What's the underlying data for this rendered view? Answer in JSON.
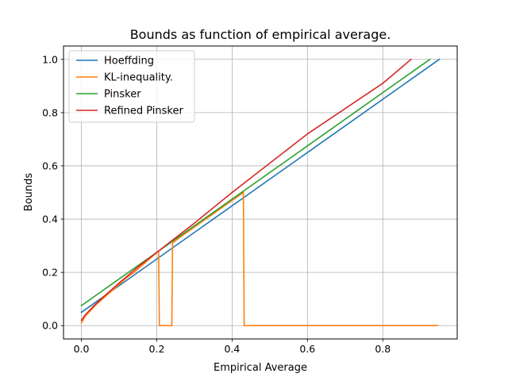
{
  "chart_data": {
    "type": "line",
    "title": "Bounds as function of empirical average.",
    "xlabel": "Empirical Average",
    "ylabel": "Bounds",
    "xlim": [
      -0.0475,
      0.9975
    ],
    "ylim": [
      -0.05,
      1.05
    ],
    "xticks": [
      0.0,
      0.2,
      0.4,
      0.6,
      0.8
    ],
    "yticks": [
      0.0,
      0.2,
      0.4,
      0.6,
      0.8,
      1.0
    ],
    "xtick_labels": [
      "0.0",
      "0.2",
      "0.4",
      "0.6",
      "0.8"
    ],
    "ytick_labels": [
      "0.0",
      "0.2",
      "0.4",
      "0.6",
      "0.8",
      "1.0"
    ],
    "grid": true,
    "legend_position": "upper-left",
    "series": [
      {
        "name": "Hoeffding",
        "color": "#1f77b4",
        "points": [
          [
            0.0,
            0.05
          ],
          [
            0.95,
            1.0
          ]
        ]
      },
      {
        "name": "KL-inequality.",
        "color": "#ff7f0e",
        "points": [
          [
            0.0,
            0.01
          ],
          [
            0.01,
            0.035
          ],
          [
            0.02,
            0.05
          ],
          [
            0.04,
            0.08
          ],
          [
            0.06,
            0.105
          ],
          [
            0.08,
            0.13
          ],
          [
            0.1,
            0.155
          ],
          [
            0.12,
            0.18
          ],
          [
            0.14,
            0.2
          ],
          [
            0.16,
            0.225
          ],
          [
            0.18,
            0.25
          ],
          [
            0.205,
            0.28
          ],
          [
            0.207,
            0.0
          ],
          [
            0.24,
            0.0
          ],
          [
            0.242,
            0.31
          ],
          [
            0.26,
            0.33
          ],
          [
            0.3,
            0.37
          ],
          [
            0.34,
            0.41
          ],
          [
            0.38,
            0.45
          ],
          [
            0.43,
            0.5
          ],
          [
            0.432,
            0.0
          ],
          [
            0.6,
            0.0
          ],
          [
            0.8,
            0.0
          ],
          [
            0.945,
            0.0
          ]
        ]
      },
      {
        "name": "Pinsker",
        "color": "#2ca02c",
        "points": [
          [
            0.0,
            0.075
          ],
          [
            0.925,
            1.0
          ]
        ]
      },
      {
        "name": "Refined Pinsker",
        "color": "#d62728",
        "points": [
          [
            0.0,
            0.02
          ],
          [
            0.01,
            0.04
          ],
          [
            0.03,
            0.07
          ],
          [
            0.06,
            0.11
          ],
          [
            0.1,
            0.16
          ],
          [
            0.15,
            0.22
          ],
          [
            0.2,
            0.275
          ],
          [
            0.3,
            0.385
          ],
          [
            0.4,
            0.5
          ],
          [
            0.6,
            0.72
          ],
          [
            0.8,
            0.91
          ],
          [
            0.875,
            1.0
          ]
        ]
      }
    ]
  }
}
